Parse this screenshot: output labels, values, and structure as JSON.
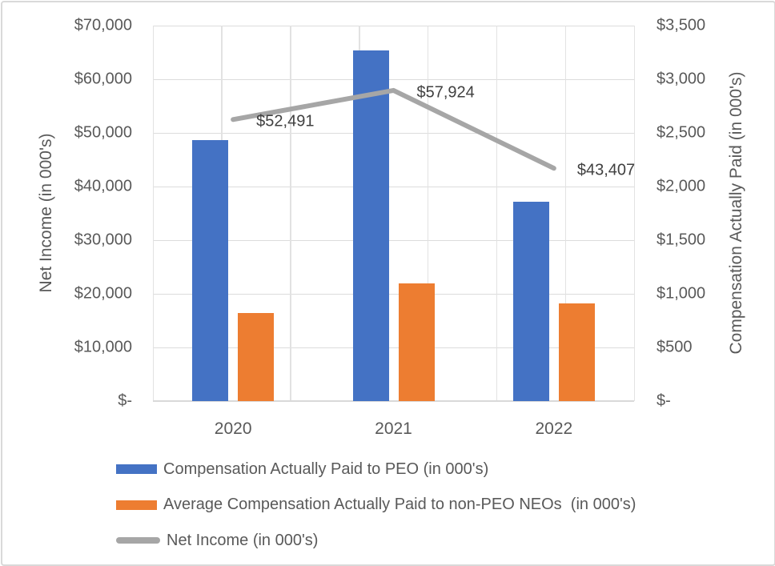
{
  "chart_data": {
    "type": "combo-bar-line",
    "categories": [
      "2020",
      "2021",
      "2022"
    ],
    "series": [
      {
        "name": "Compensation Actually Paid to PEO (in 000's)",
        "type": "bar",
        "axis": "right",
        "color": "#4472C4",
        "values": [
          2434,
          3270,
          1858
        ]
      },
      {
        "name": "Average Compensation Actually Paid to non-PEO NEOs  (in 000's)",
        "type": "bar",
        "axis": "right",
        "color": "#ED7D31",
        "values": [
          822,
          1098,
          908
        ]
      },
      {
        "name": "Net Income (in 000's)",
        "type": "line",
        "axis": "left",
        "color": "#A6A6A6",
        "values": [
          52491,
          57924,
          43407
        ],
        "data_labels": [
          "$52,491",
          "$57,924",
          "$43,407"
        ]
      }
    ],
    "left_axis": {
      "title": "Net Income (in 000's)",
      "min": 0,
      "max": 70000,
      "tick_step": 10000,
      "tick_labels_top_down": [
        "$70,000",
        "$60,000",
        "$50,000",
        "$40,000",
        "$30,000",
        "$20,000",
        "$10,000",
        "$-"
      ]
    },
    "right_axis": {
      "title": "Compensation Actually Paid (in 000's)",
      "min": 0,
      "max": 3500,
      "tick_step": 500,
      "tick_labels_top_down": [
        "$3,500",
        "$3,000",
        "$2,500",
        "$2,000",
        "$1,500",
        "$1,000",
        "$500",
        "$-"
      ]
    },
    "grid": {
      "horizontal": true,
      "vertical": true,
      "h_divisions": 7,
      "v_divisions": 7
    },
    "legend": {
      "position": "bottom-left",
      "entries": [
        {
          "label": "Compensation Actually Paid to PEO (in 000's)",
          "marker": "bar",
          "color": "#4472C4"
        },
        {
          "label": "Average Compensation Actually Paid to non-PEO NEOs  (in 000's)",
          "marker": "bar",
          "color": "#ED7D31"
        },
        {
          "label": "Net Income (in 000's)",
          "marker": "line",
          "color": "#A6A6A6"
        }
      ]
    },
    "colors": {
      "grid": "#D9D9D9",
      "axis_text": "#595959",
      "data_label_text": "#404040",
      "frame_border": "#D9D9D9",
      "background": "#FFFFFF"
    }
  }
}
